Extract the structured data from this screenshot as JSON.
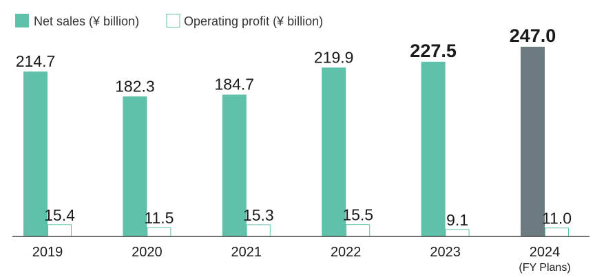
{
  "chart_data": {
    "type": "bar",
    "categories": [
      "2019",
      "2020",
      "2021",
      "2022",
      "2023",
      "2024"
    ],
    "category_notes": [
      "",
      "",
      "",
      "",
      "",
      "(FY Plans)"
    ],
    "series": [
      {
        "name": "Net sales (¥ billion)",
        "values": [
          214.7,
          182.3,
          184.7,
          219.9,
          227.5,
          247.0
        ],
        "value_labels": [
          "214.7",
          "182.3",
          "184.7",
          "219.9",
          "227.5",
          "247.0"
        ],
        "color": "#5fc1a9",
        "highlight_color": "#6c7a82",
        "style": "filled"
      },
      {
        "name": "Operating profit (¥ billion)",
        "values": [
          15.4,
          11.5,
          15.3,
          15.5,
          9.1,
          11.0
        ],
        "value_labels": [
          "15.4",
          "11.5",
          "15.3",
          "15.5",
          "9.1",
          "11.0"
        ],
        "color": "#5fc1a9",
        "style": "outline"
      }
    ],
    "highlight_category": "2024",
    "ylim": [
      0,
      260
    ],
    "grid": false,
    "legend": "top-left",
    "title": "",
    "xlabel": "",
    "ylabel": ""
  }
}
